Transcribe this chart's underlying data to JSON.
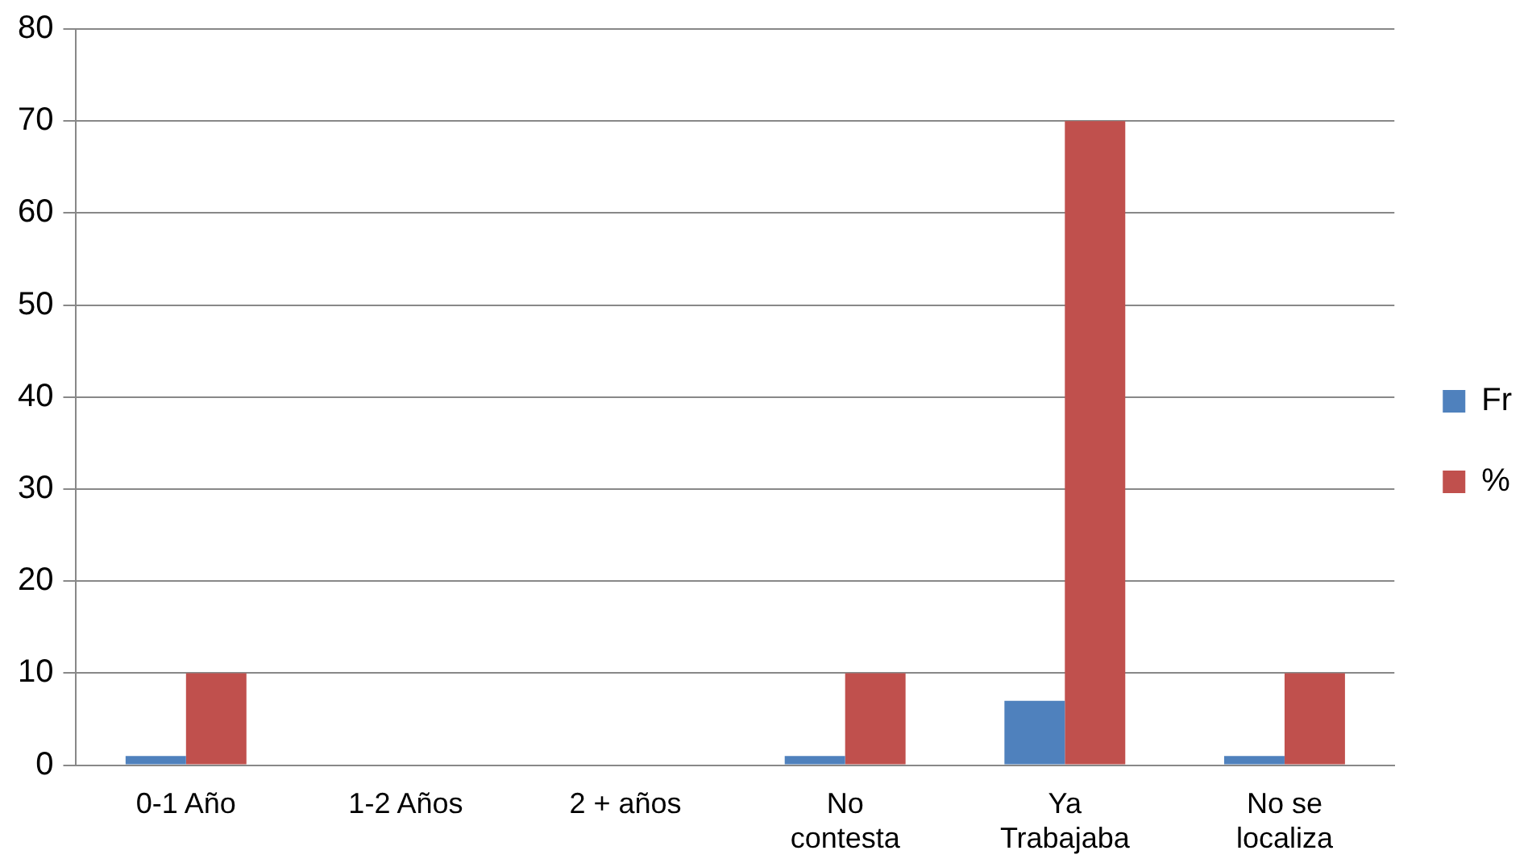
{
  "chart_data": {
    "type": "bar",
    "categories": [
      "0-1 Año",
      "1-2 Años",
      "2 + años",
      "No contesta",
      "Ya Trabajaba",
      "No se localiza"
    ],
    "series": [
      {
        "name": "Fr",
        "color": "#4f81bd",
        "values": [
          1,
          0,
          0,
          1,
          7,
          1
        ]
      },
      {
        "name": "%",
        "color": "#c0504d",
        "values": [
          10,
          0,
          0,
          10,
          70,
          10
        ]
      }
    ],
    "ylim": [
      0,
      80
    ],
    "yticks": [
      0,
      10,
      20,
      30,
      40,
      50,
      60,
      70,
      80
    ],
    "grid": "y",
    "legend": "right"
  }
}
